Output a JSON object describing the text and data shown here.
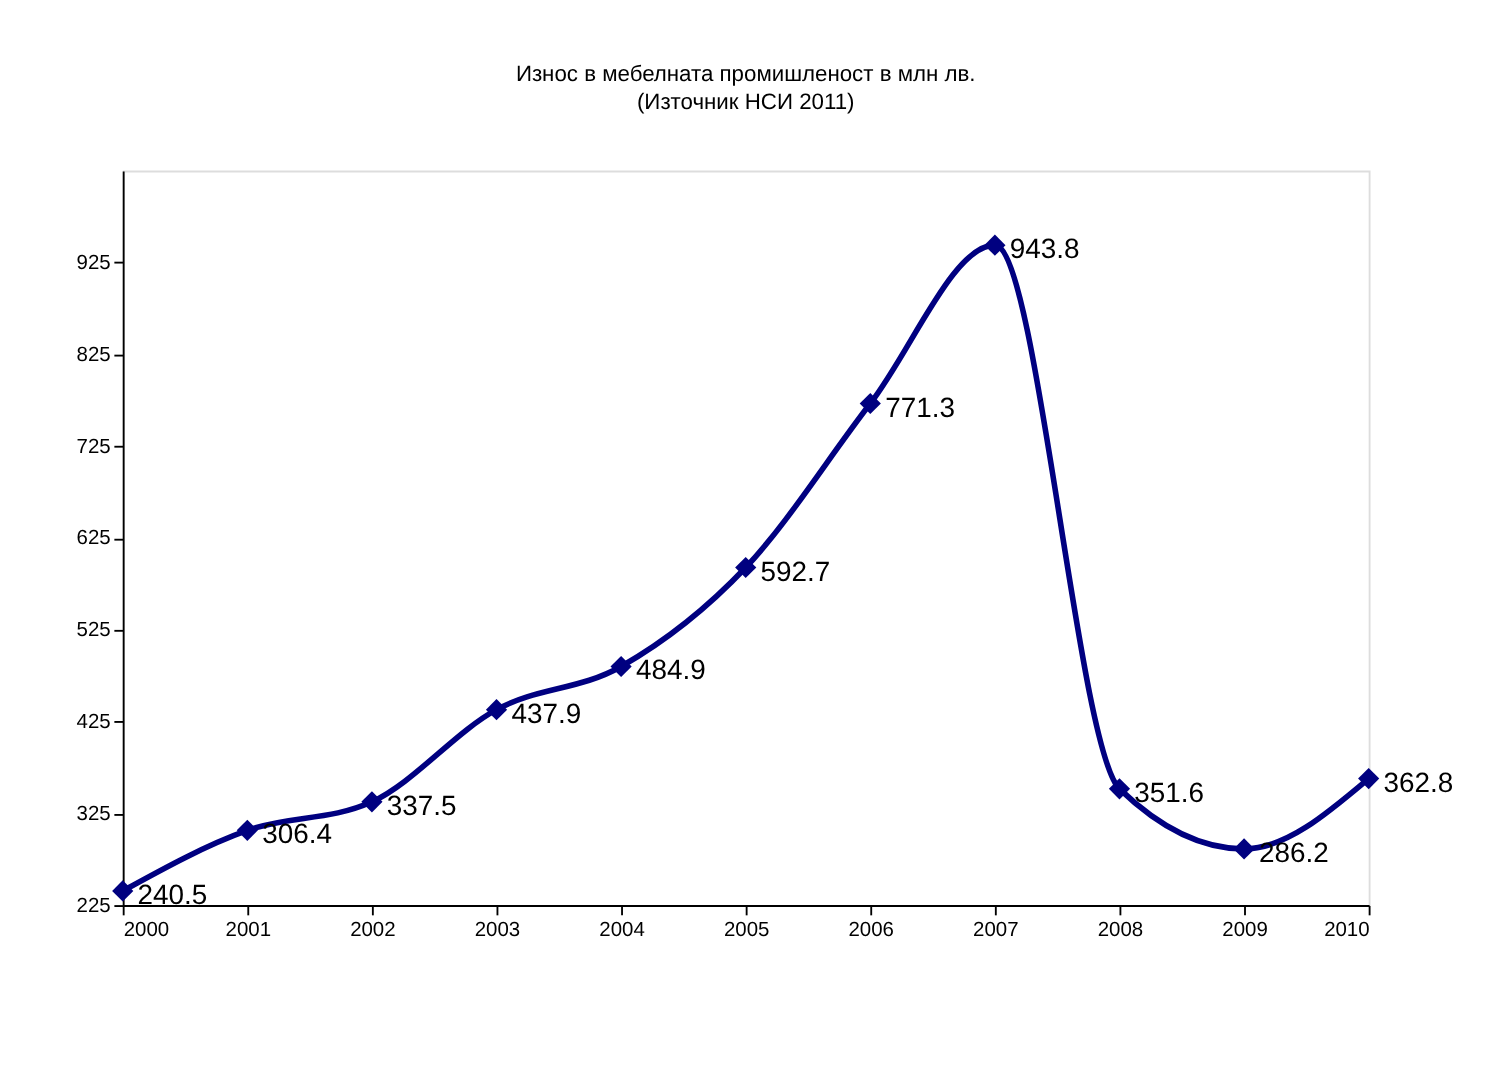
{
  "chart_data": {
    "type": "line",
    "title": "Износ в мебелната  промишленост в млн лв.",
    "subtitle": "(Източник НСИ 2011)",
    "x": [
      2000,
      2001,
      2002,
      2003,
      2004,
      2005,
      2006,
      2007,
      2008,
      2009,
      2010
    ],
    "series": [
      {
        "color": "#000080",
        "values": [
          240.5,
          306.4,
          337.5,
          437.9,
          484.9,
          592.7,
          771.3,
          943.8,
          351.6,
          286.2,
          362.8
        ]
      }
    ],
    "xlim": [
      2000,
      2010
    ],
    "xticks": [
      2000,
      2001,
      2002,
      2003,
      2004,
      2005,
      2006,
      2007,
      2008,
      2009,
      2010
    ],
    "ylim": [
      225,
      1025
    ],
    "yticks": [
      225,
      325,
      425,
      525,
      625,
      725,
      825,
      925
    ],
    "marker": "diamond",
    "line_style": "solid",
    "data_labels": true,
    "grid": false,
    "legend": false
  }
}
